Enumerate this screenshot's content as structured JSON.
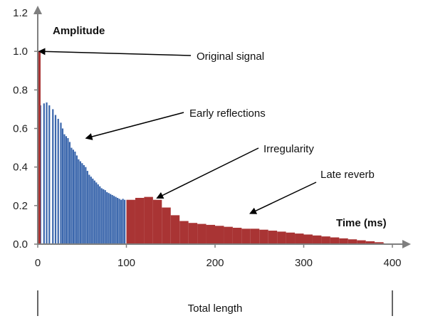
{
  "chart_data": {
    "type": "bar",
    "xlabel": "Time (ms)",
    "ylabel": "Amplitude",
    "xlim": [
      0,
      400
    ],
    "ylim": [
      0,
      1.2
    ],
    "x_ticks": [
      0,
      100,
      200,
      300,
      400
    ],
    "y_ticks": [
      0.0,
      0.2,
      0.4,
      0.6,
      0.8,
      1.0,
      1.2
    ],
    "y_tick_labels": [
      "0.0",
      "0.2",
      "0.4",
      "0.6",
      "0.8",
      "1.0",
      "1.2"
    ],
    "grid": false,
    "colors": {
      "original": "#a93434",
      "early": "#3a66ac",
      "late": "#a93434",
      "axis": "#7f7f7f",
      "arrow": "#000000"
    },
    "original_signal": {
      "x": 0,
      "y": 1.0
    },
    "early_reflections": {
      "x": [
        3,
        7,
        10,
        13,
        17,
        20,
        23,
        26,
        28,
        30,
        32,
        34,
        36,
        38,
        40,
        42,
        44,
        46,
        48,
        50,
        52,
        54,
        56,
        58,
        60,
        62,
        64,
        66,
        68,
        70,
        72,
        74,
        76,
        78,
        80,
        82,
        84,
        86,
        88,
        90,
        92,
        94,
        96,
        98
      ],
      "y": [
        0.72,
        0.73,
        0.735,
        0.72,
        0.7,
        0.67,
        0.65,
        0.63,
        0.6,
        0.57,
        0.56,
        0.55,
        0.53,
        0.5,
        0.49,
        0.48,
        0.46,
        0.44,
        0.43,
        0.42,
        0.41,
        0.4,
        0.38,
        0.36,
        0.35,
        0.34,
        0.33,
        0.32,
        0.31,
        0.3,
        0.29,
        0.285,
        0.28,
        0.27,
        0.265,
        0.26,
        0.255,
        0.25,
        0.245,
        0.24,
        0.235,
        0.23,
        0.235,
        0.23
      ]
    },
    "late_reverb": {
      "x": [
        100,
        110,
        120,
        130,
        140,
        150,
        160,
        170,
        180,
        190,
        200,
        210,
        220,
        230,
        240,
        250,
        260,
        270,
        280,
        290,
        300,
        310,
        320,
        330,
        340,
        350,
        360,
        370,
        380,
        390
      ],
      "y": [
        0.23,
        0.24,
        0.245,
        0.23,
        0.19,
        0.15,
        0.12,
        0.11,
        0.105,
        0.1,
        0.095,
        0.09,
        0.085,
        0.08,
        0.08,
        0.075,
        0.07,
        0.065,
        0.06,
        0.055,
        0.05,
        0.045,
        0.04,
        0.035,
        0.03,
        0.025,
        0.02,
        0.015,
        0.01,
        0.005
      ]
    },
    "annotations": [
      {
        "text": "Original signal",
        "arrow_to": [
          2,
          1.0
        ]
      },
      {
        "text": "Early reflections",
        "arrow_to": [
          55,
          0.55
        ]
      },
      {
        "text": "Irregularity",
        "arrow_to": [
          135,
          0.24
        ]
      },
      {
        "text": "Late reverb",
        "arrow_to": [
          240,
          0.16
        ]
      }
    ],
    "bracket_label": "Total length"
  }
}
